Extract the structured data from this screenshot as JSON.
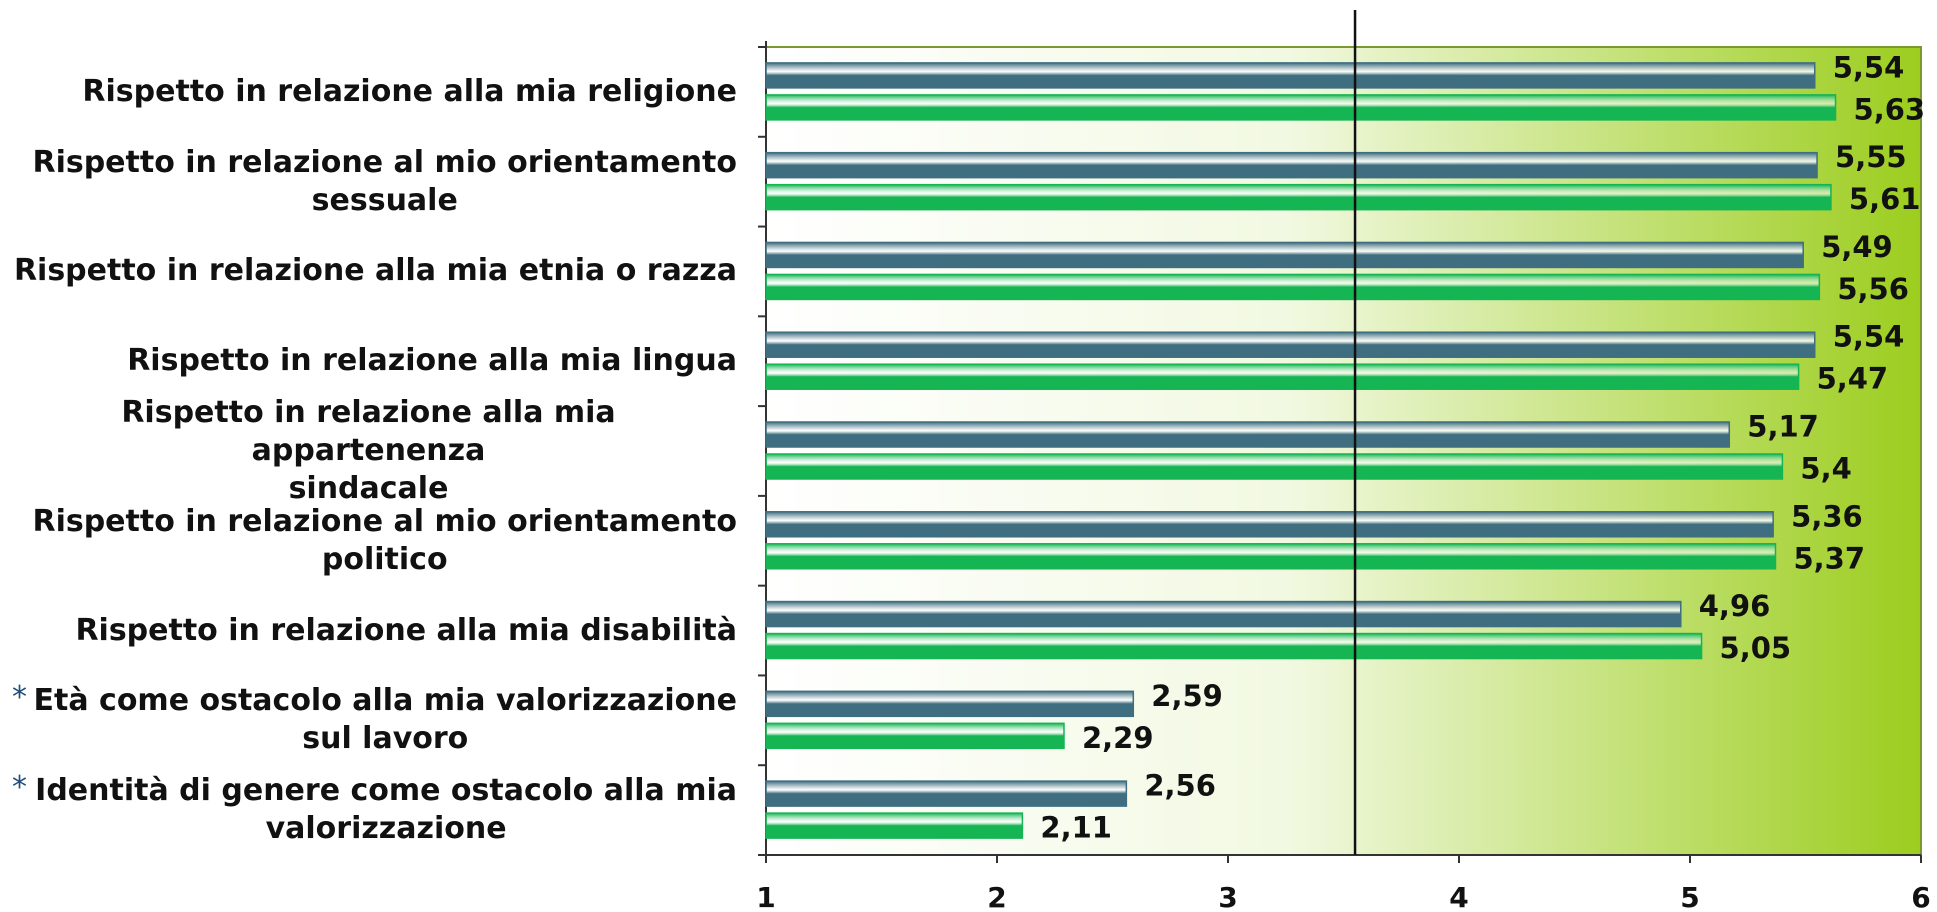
{
  "chart_data": {
    "type": "hbar",
    "categories": [
      "Rispetto in relazione alla mia religione",
      "Rispetto in relazione al mio orientamento\nsessuale",
      "Rispetto in relazione alla mia etnia o razza",
      "Rispetto in relazione alla mia lingua",
      "Rispetto in relazione alla mia appartenenza\nsindacale",
      "Rispetto in relazione al mio orientamento\npolitico",
      "Rispetto in relazione alla mia disabilità",
      "Età  come ostacolo alla mia valorizzazione\nsul lavoro",
      "Identità di genere come ostacolo alla mia\nvalorizzazione"
    ],
    "category_marks": [
      null,
      null,
      null,
      null,
      null,
      null,
      null,
      "*",
      "*"
    ],
    "series": [
      {
        "color": "#3f6e80",
        "values": [
          5.54,
          5.55,
          5.49,
          5.54,
          5.17,
          5.36,
          4.96,
          2.59,
          2.56
        ],
        "value_labels": [
          "5,54",
          "5,55",
          "5,49",
          "5,54",
          "5,17",
          "5,36",
          "4,96",
          "2,59",
          "2,56"
        ]
      },
      {
        "color": "#14b552",
        "values": [
          5.63,
          5.61,
          5.56,
          5.47,
          5.4,
          5.37,
          5.05,
          2.29,
          2.11
        ],
        "value_labels": [
          "5,63",
          "5,61",
          "5,56",
          "5,47",
          "5,4",
          "5,37",
          "5,05",
          "2,29",
          "2,11"
        ]
      }
    ],
    "xlim": [
      1,
      6
    ],
    "xticks": [
      1,
      2,
      3,
      4,
      5,
      6
    ],
    "reference_line": 3.55
  }
}
